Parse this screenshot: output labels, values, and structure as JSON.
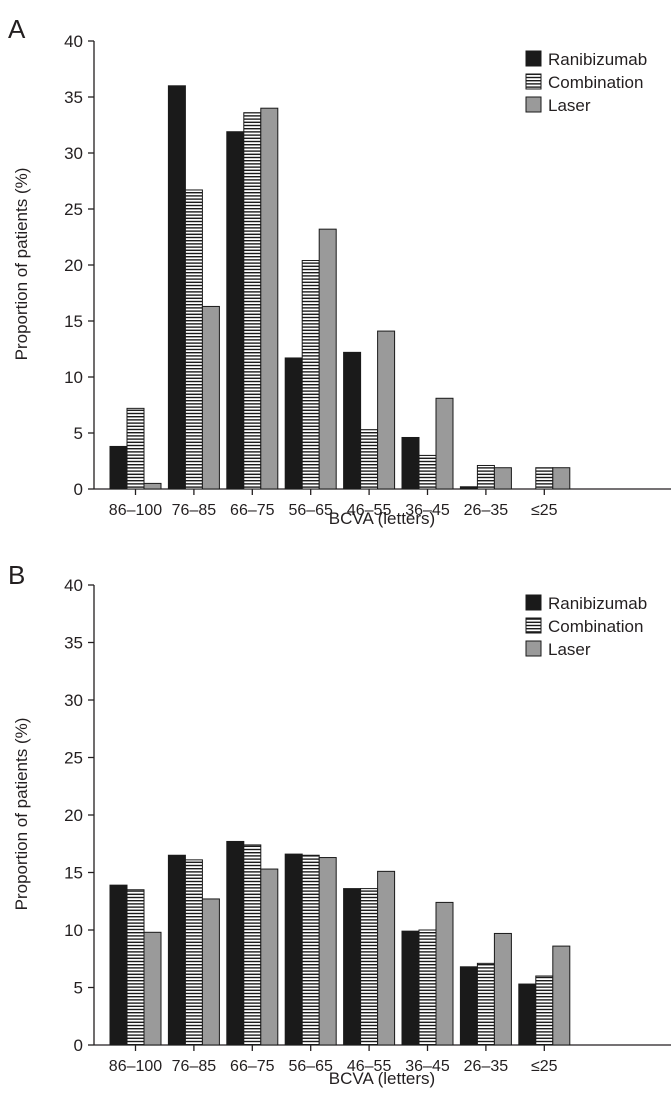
{
  "colors": {
    "ranibizumab": "#1a1a1a",
    "combination": "#ffffff",
    "combination_stripe": "#1a1a1a",
    "laser": "#9a9a9a"
  },
  "chart_data": [
    {
      "panel_label": "A",
      "type": "bar",
      "categories": [
        "86–100",
        "76–85",
        "66–75",
        "56–65",
        "46–55",
        "36–45",
        "26–35",
        "≤25"
      ],
      "series": [
        {
          "name": "Ranibizumab",
          "pattern": "solid-black",
          "values": [
            3.8,
            36.0,
            31.9,
            11.7,
            12.2,
            4.6,
            0.2,
            0.0
          ]
        },
        {
          "name": "Combination",
          "pattern": "horizontal-stripes",
          "values": [
            7.2,
            26.7,
            33.6,
            20.4,
            5.3,
            3.0,
            2.1,
            1.9
          ]
        },
        {
          "name": "Laser",
          "pattern": "solid-gray",
          "values": [
            0.5,
            16.3,
            34.0,
            23.2,
            14.1,
            8.1,
            1.9,
            1.9
          ]
        }
      ],
      "xlabel": "BCVA (letters)",
      "ylabel": "Proportion of patients (%)",
      "ylim": [
        0,
        40
      ],
      "yticks": [
        0,
        5,
        10,
        15,
        20,
        25,
        30,
        35,
        40
      ],
      "legend_position": "top-right",
      "grid": false
    },
    {
      "panel_label": "B",
      "type": "bar",
      "categories": [
        "86–100",
        "76–85",
        "66–75",
        "56–65",
        "46–55",
        "36–45",
        "26–35",
        "≤25"
      ],
      "series": [
        {
          "name": "Ranibizumab",
          "pattern": "solid-black",
          "values": [
            13.9,
            16.5,
            17.7,
            16.6,
            13.6,
            9.9,
            6.8,
            5.3
          ]
        },
        {
          "name": "Combination",
          "pattern": "horizontal-stripes",
          "values": [
            13.5,
            16.1,
            17.4,
            16.5,
            13.6,
            10.0,
            7.1,
            6.0
          ]
        },
        {
          "name": "Laser",
          "pattern": "solid-gray",
          "values": [
            9.8,
            12.7,
            15.3,
            16.3,
            15.1,
            12.4,
            9.7,
            8.6
          ]
        }
      ],
      "xlabel": "BCVA (letters)",
      "ylabel": "Proportion of patients (%)",
      "ylim": [
        0,
        40
      ],
      "yticks": [
        0,
        5,
        10,
        15,
        20,
        25,
        30,
        35,
        40
      ],
      "legend_position": "top-right",
      "grid": false
    }
  ]
}
